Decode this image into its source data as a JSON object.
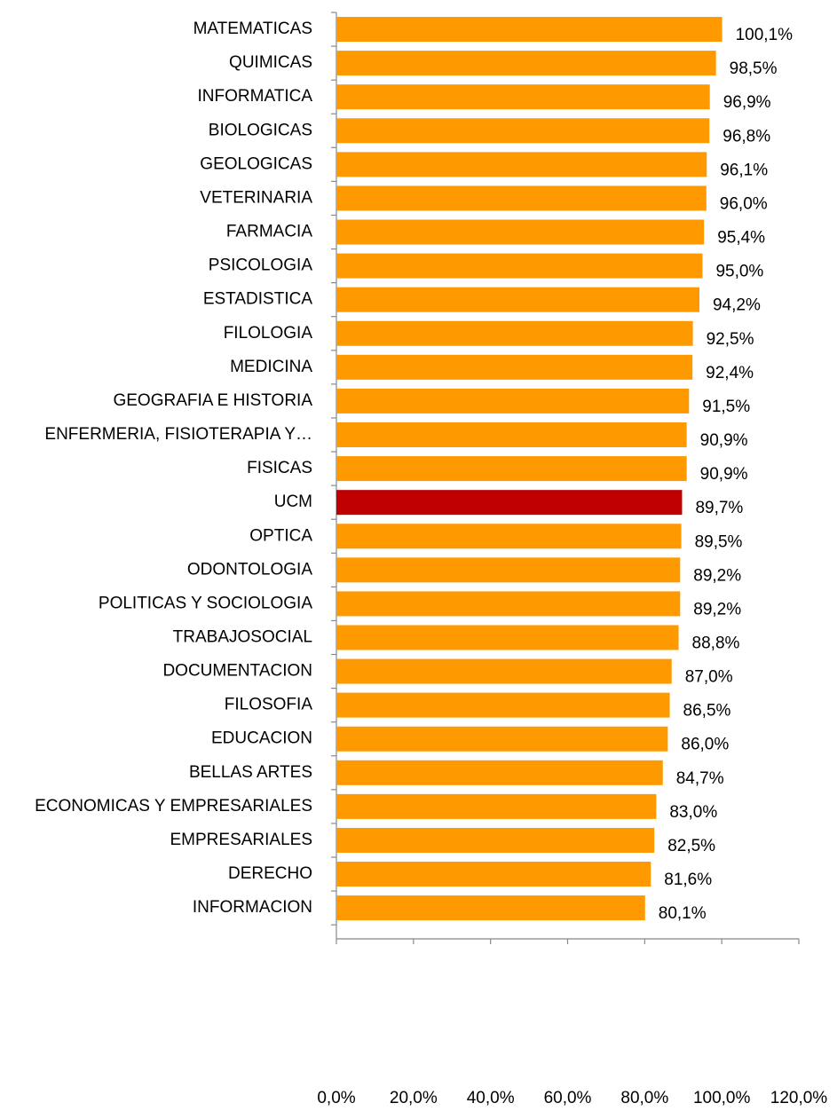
{
  "chart_data": {
    "type": "hbar",
    "categories": [
      "MATEMATICAS",
      "QUIMICAS",
      "INFORMATICA",
      "BIOLOGICAS",
      "GEOLOGICAS",
      "VETERINARIA",
      "FARMACIA",
      "PSICOLOGIA",
      "ESTADISTICA",
      "FILOLOGIA",
      "MEDICINA",
      "GEOGRAFIA E HISTORIA",
      "ENFERMERIA, FISIOTERAPIA Y…",
      "FISICAS",
      "UCM",
      "OPTICA",
      "ODONTOLOGIA",
      "POLITICAS Y SOCIOLOGIA",
      "TRABAJOSOCIAL",
      "DOCUMENTACION",
      "FILOSOFIA",
      "EDUCACION",
      "BELLAS ARTES",
      "ECONOMICAS Y EMPRESARIALES",
      "EMPRESARIALES",
      "DERECHO",
      "INFORMACION"
    ],
    "values": [
      100.1,
      98.5,
      96.9,
      96.8,
      96.1,
      96.0,
      95.4,
      95.0,
      94.2,
      92.5,
      92.4,
      91.5,
      90.9,
      90.9,
      89.7,
      89.5,
      89.2,
      89.2,
      88.8,
      87.0,
      86.5,
      86.0,
      84.7,
      83.0,
      82.5,
      81.6,
      80.1
    ],
    "value_labels": [
      "100,1%",
      "98,5%",
      "96,9%",
      "96,8%",
      "96,1%",
      "96,0%",
      "95,4%",
      "95,0%",
      "94,2%",
      "92,5%",
      "92,4%",
      "91,5%",
      "90,9%",
      "90,9%",
      "89,7%",
      "89,5%",
      "89,2%",
      "89,2%",
      "88,8%",
      "87,0%",
      "86,5%",
      "86,0%",
      "84,7%",
      "83,0%",
      "82,5%",
      "81,6%",
      "80,1%"
    ],
    "colors": [
      "#ff9900",
      "#ff9900",
      "#ff9900",
      "#ff9900",
      "#ff9900",
      "#ff9900",
      "#ff9900",
      "#ff9900",
      "#ff9900",
      "#ff9900",
      "#ff9900",
      "#ff9900",
      "#ff9900",
      "#ff9900",
      "#c00000",
      "#ff9900",
      "#ff9900",
      "#ff9900",
      "#ff9900",
      "#ff9900",
      "#ff9900",
      "#ff9900",
      "#ff9900",
      "#ff9900",
      "#ff9900",
      "#ff9900",
      "#ff9900"
    ],
    "xlim": [
      0,
      120
    ],
    "xticks": [
      {
        "value": 0,
        "label": "0,0%"
      },
      {
        "value": 20,
        "label": "20,0%"
      },
      {
        "value": 40,
        "label": "40,0%"
      },
      {
        "value": 60,
        "label": "60,0%"
      },
      {
        "value": 80,
        "label": "80,0%"
      },
      {
        "value": 100,
        "label": "100,0%"
      },
      {
        "value": 120,
        "label": "120,0%"
      }
    ],
    "grid": false
  }
}
